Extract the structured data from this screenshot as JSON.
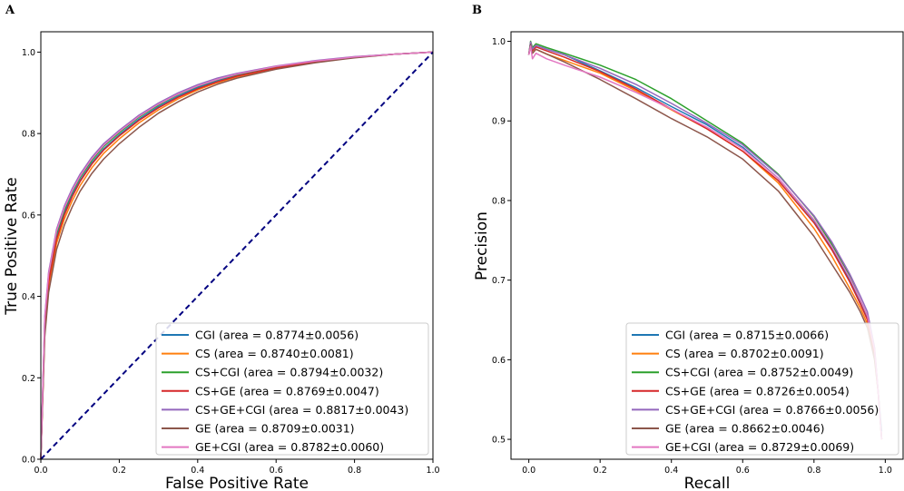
{
  "chart_data": [
    {
      "type": "line",
      "panel": "A",
      "xlabel": "False Positive Rate",
      "ylabel": "True Positive Rate",
      "xlim": [
        0.0,
        1.0
      ],
      "ylim": [
        0.0,
        1.05
      ],
      "xticks": [
        "0.0",
        "0.2",
        "0.4",
        "0.6",
        "0.8",
        "1.0"
      ],
      "yticks": [
        "0.0",
        "0.2",
        "0.4",
        "0.6",
        "0.8",
        "1.0"
      ],
      "legend_position": "lower-right",
      "reference_line": {
        "x": [
          0,
          1
        ],
        "y": [
          0,
          1
        ],
        "style": "dashed",
        "color": "#000080"
      },
      "series": [
        {
          "name": "CGI",
          "legend": "CGI (area = 0.8774±0.0056)",
          "color": "#1f77b4",
          "x": [
            0,
            0.01,
            0.02,
            0.04,
            0.06,
            0.08,
            0.1,
            0.13,
            0.16,
            0.2,
            0.25,
            0.3,
            0.35,
            0.4,
            0.45,
            0.5,
            0.6,
            0.7,
            0.8,
            0.9,
            1.0
          ],
          "y": [
            0,
            0.33,
            0.44,
            0.545,
            0.605,
            0.65,
            0.685,
            0.728,
            0.762,
            0.797,
            0.835,
            0.866,
            0.892,
            0.913,
            0.93,
            0.943,
            0.963,
            0.977,
            0.988,
            0.995,
            1.0
          ]
        },
        {
          "name": "CS",
          "legend": "CS (area = 0.8740±0.0081)",
          "color": "#ff7f0e",
          "x": [
            0,
            0.01,
            0.02,
            0.04,
            0.06,
            0.08,
            0.1,
            0.13,
            0.16,
            0.2,
            0.25,
            0.3,
            0.35,
            0.4,
            0.45,
            0.5,
            0.6,
            0.7,
            0.8,
            0.9,
            1.0
          ],
          "y": [
            0,
            0.31,
            0.42,
            0.53,
            0.59,
            0.635,
            0.672,
            0.716,
            0.751,
            0.787,
            0.826,
            0.858,
            0.885,
            0.907,
            0.925,
            0.939,
            0.96,
            0.975,
            0.987,
            0.995,
            1.0
          ]
        },
        {
          "name": "CS+CGI",
          "legend": "CS+CGI (area = 0.8794±0.0032)",
          "color": "#2ca02c",
          "x": [
            0,
            0.01,
            0.02,
            0.04,
            0.06,
            0.08,
            0.1,
            0.13,
            0.16,
            0.2,
            0.25,
            0.3,
            0.35,
            0.4,
            0.45,
            0.5,
            0.6,
            0.7,
            0.8,
            0.9,
            1.0
          ],
          "y": [
            0,
            0.34,
            0.45,
            0.555,
            0.612,
            0.657,
            0.692,
            0.734,
            0.768,
            0.802,
            0.84,
            0.87,
            0.896,
            0.916,
            0.932,
            0.945,
            0.964,
            0.978,
            0.988,
            0.995,
            1.0
          ]
        },
        {
          "name": "CS+GE",
          "legend": "CS+GE (area = 0.8769±0.0047)",
          "color": "#d62728",
          "x": [
            0,
            0.01,
            0.02,
            0.04,
            0.06,
            0.08,
            0.1,
            0.13,
            0.16,
            0.2,
            0.25,
            0.3,
            0.35,
            0.4,
            0.45,
            0.5,
            0.6,
            0.7,
            0.8,
            0.9,
            1.0
          ],
          "y": [
            0,
            0.325,
            0.435,
            0.54,
            0.6,
            0.645,
            0.682,
            0.725,
            0.759,
            0.794,
            0.832,
            0.863,
            0.889,
            0.91,
            0.927,
            0.941,
            0.961,
            0.976,
            0.987,
            0.995,
            1.0
          ]
        },
        {
          "name": "CS+GE+CGI",
          "legend": "CS+GE+CGI (area = 0.8817±0.0043)",
          "color": "#9467bd",
          "x": [
            0,
            0.01,
            0.02,
            0.04,
            0.06,
            0.08,
            0.1,
            0.13,
            0.16,
            0.2,
            0.25,
            0.3,
            0.35,
            0.4,
            0.45,
            0.5,
            0.6,
            0.7,
            0.8,
            0.9,
            1.0
          ],
          "y": [
            0,
            0.35,
            0.46,
            0.565,
            0.622,
            0.665,
            0.7,
            0.742,
            0.775,
            0.808,
            0.845,
            0.875,
            0.9,
            0.92,
            0.936,
            0.948,
            0.966,
            0.979,
            0.989,
            0.995,
            1.0
          ]
        },
        {
          "name": "GE",
          "legend": "GE (area = 0.8709±0.0031)",
          "color": "#8c564b",
          "x": [
            0,
            0.01,
            0.02,
            0.04,
            0.06,
            0.08,
            0.1,
            0.13,
            0.16,
            0.2,
            0.25,
            0.3,
            0.35,
            0.4,
            0.45,
            0.5,
            0.6,
            0.7,
            0.8,
            0.9,
            1.0
          ],
          "y": [
            0,
            0.3,
            0.41,
            0.515,
            0.575,
            0.62,
            0.658,
            0.702,
            0.737,
            0.775,
            0.815,
            0.85,
            0.878,
            0.902,
            0.921,
            0.936,
            0.958,
            0.974,
            0.986,
            0.995,
            1.0
          ]
        },
        {
          "name": "GE+CGI",
          "legend": "GE+CGI (area = 0.8782±0.0060)",
          "color": "#e377c2",
          "x": [
            0,
            0.01,
            0.02,
            0.04,
            0.06,
            0.08,
            0.1,
            0.13,
            0.16,
            0.2,
            0.25,
            0.3,
            0.35,
            0.4,
            0.45,
            0.5,
            0.6,
            0.7,
            0.8,
            0.9,
            1.0
          ],
          "y": [
            0,
            0.345,
            0.455,
            0.56,
            0.617,
            0.66,
            0.695,
            0.738,
            0.771,
            0.805,
            0.842,
            0.872,
            0.897,
            0.917,
            0.933,
            0.946,
            0.965,
            0.978,
            0.988,
            0.995,
            1.0
          ]
        }
      ]
    },
    {
      "type": "line",
      "panel": "B",
      "xlabel": "Recall",
      "ylabel": "Precision",
      "xlim": [
        -0.05,
        1.05
      ],
      "ylim": [
        0.475,
        1.012
      ],
      "xticks": [
        "0.0",
        "0.2",
        "0.4",
        "0.6",
        "0.8",
        "1.0"
      ],
      "yticks": [
        "0.5",
        "0.6",
        "0.7",
        "0.8",
        "0.9",
        "1.0"
      ],
      "legend_position": "lower-right",
      "series": [
        {
          "name": "CGI",
          "legend": "CGI (area = 0.8715±0.0066)",
          "color": "#1f77b4",
          "x": [
            0,
            0.005,
            0.01,
            0.02,
            0.05,
            0.1,
            0.2,
            0.3,
            0.4,
            0.5,
            0.6,
            0.7,
            0.8,
            0.85,
            0.9,
            0.93,
            0.95,
            0.97,
            0.98,
            0.99
          ],
          "y": [
            0.983,
            0.998,
            0.99,
            0.995,
            0.99,
            0.983,
            0.963,
            0.942,
            0.918,
            0.895,
            0.867,
            0.828,
            0.775,
            0.74,
            0.7,
            0.672,
            0.652,
            0.61,
            0.56,
            0.51
          ]
        },
        {
          "name": "CS",
          "legend": "CS (area = 0.8702±0.0091)",
          "color": "#ff7f0e",
          "x": [
            0,
            0.005,
            0.01,
            0.02,
            0.05,
            0.1,
            0.2,
            0.3,
            0.4,
            0.5,
            0.6,
            0.7,
            0.8,
            0.85,
            0.9,
            0.93,
            0.95,
            0.97,
            0.98,
            0.99
          ],
          "y": [
            0.983,
            0.996,
            0.985,
            0.99,
            0.984,
            0.976,
            0.96,
            0.938,
            0.914,
            0.89,
            0.862,
            0.822,
            0.765,
            0.73,
            0.69,
            0.665,
            0.645,
            0.6,
            0.56,
            0.5
          ]
        },
        {
          "name": "CS+CGI",
          "legend": "CS+CGI (area = 0.8752±0.0049)",
          "color": "#2ca02c",
          "x": [
            0,
            0.005,
            0.01,
            0.02,
            0.05,
            0.1,
            0.2,
            0.3,
            0.4,
            0.5,
            0.6,
            0.7,
            0.8,
            0.85,
            0.9,
            0.93,
            0.95,
            0.97,
            0.98,
            0.99
          ],
          "y": [
            0.983,
            1.0,
            0.992,
            0.997,
            0.992,
            0.985,
            0.97,
            0.952,
            0.928,
            0.9,
            0.872,
            0.833,
            0.78,
            0.745,
            0.705,
            0.675,
            0.655,
            0.612,
            0.56,
            0.5
          ]
        },
        {
          "name": "CS+GE",
          "legend": "CS+GE (area = 0.8726±0.0054)",
          "color": "#d62728",
          "x": [
            0,
            0.005,
            0.01,
            0.02,
            0.05,
            0.1,
            0.2,
            0.3,
            0.4,
            0.5,
            0.6,
            0.7,
            0.8,
            0.85,
            0.9,
            0.93,
            0.95,
            0.97,
            0.98,
            0.99
          ],
          "y": [
            0.983,
            0.997,
            0.988,
            0.993,
            0.988,
            0.98,
            0.962,
            0.94,
            0.915,
            0.89,
            0.862,
            0.825,
            0.772,
            0.738,
            0.698,
            0.67,
            0.65,
            0.607,
            0.56,
            0.5
          ]
        },
        {
          "name": "CS+GE+CGI",
          "legend": "CS+GE+CGI (area = 0.8766±0.0056)",
          "color": "#9467bd",
          "x": [
            0,
            0.005,
            0.01,
            0.02,
            0.05,
            0.1,
            0.2,
            0.3,
            0.4,
            0.5,
            0.6,
            0.7,
            0.8,
            0.85,
            0.9,
            0.93,
            0.95,
            0.97,
            0.98,
            0.99
          ],
          "y": [
            0.983,
            0.999,
            0.99,
            0.995,
            0.99,
            0.983,
            0.966,
            0.946,
            0.922,
            0.897,
            0.87,
            0.832,
            0.781,
            0.748,
            0.708,
            0.68,
            0.66,
            0.615,
            0.56,
            0.5
          ]
        },
        {
          "name": "GE",
          "legend": "GE (area = 0.8662±0.0046)",
          "color": "#8c564b",
          "x": [
            0,
            0.005,
            0.01,
            0.02,
            0.05,
            0.1,
            0.2,
            0.3,
            0.4,
            0.5,
            0.6,
            0.7,
            0.8,
            0.85,
            0.9,
            0.93,
            0.95,
            0.97,
            0.98,
            0.99
          ],
          "y": [
            0.983,
            0.996,
            0.985,
            0.99,
            0.984,
            0.974,
            0.952,
            0.928,
            0.903,
            0.88,
            0.852,
            0.812,
            0.755,
            0.72,
            0.685,
            0.66,
            0.64,
            0.6,
            0.56,
            0.5
          ]
        },
        {
          "name": "GE+CGI",
          "legend": "GE+CGI (area = 0.8729±0.0069)",
          "color": "#e377c2",
          "x": [
            0,
            0.005,
            0.01,
            0.02,
            0.05,
            0.1,
            0.2,
            0.3,
            0.4,
            0.5,
            0.6,
            0.7,
            0.8,
            0.85,
            0.9,
            0.93,
            0.95,
            0.97,
            0.98,
            0.99
          ],
          "y": [
            0.983,
            0.994,
            0.978,
            0.985,
            0.978,
            0.97,
            0.955,
            0.936,
            0.915,
            0.892,
            0.865,
            0.828,
            0.776,
            0.742,
            0.703,
            0.675,
            0.655,
            0.612,
            0.56,
            0.5
          ]
        }
      ]
    }
  ]
}
